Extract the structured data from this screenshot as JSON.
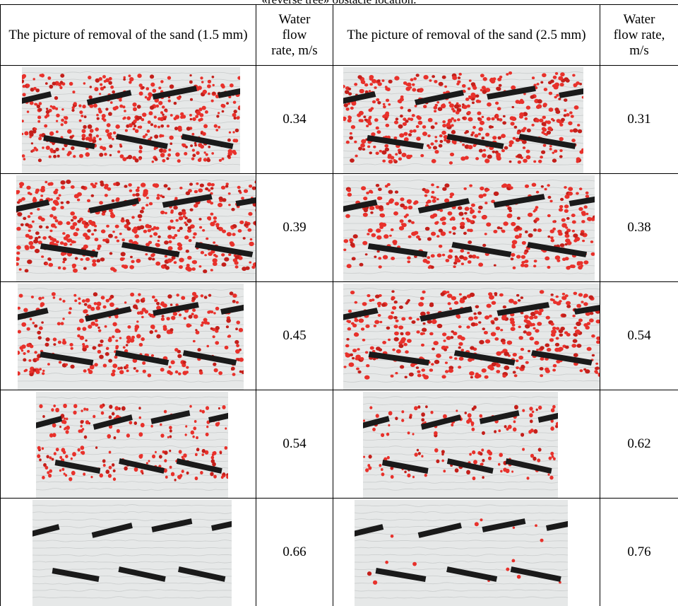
{
  "caption": "«reverse tree» obstacle location.",
  "headers": {
    "pic_small": "The picture of removal of the sand (1.5 mm)",
    "rate_small_lines": [
      "Water",
      "flow",
      "rate, m/s"
    ],
    "pic_large": "The picture of removal of the sand (2.5 mm)",
    "rate_large_lines": [
      "Water",
      "flow rate,",
      "m/s"
    ]
  },
  "rows": [
    {
      "rate_small": "0.34",
      "rate_large": "0.31",
      "sand_small": 0.85,
      "sand_large": 0.95
    },
    {
      "rate_small": "0.39",
      "rate_large": "0.38",
      "sand_small": 0.95,
      "sand_large": 0.7
    },
    {
      "rate_small": "0.45",
      "rate_large": "0.54",
      "sand_small": 0.65,
      "sand_large": 0.8
    },
    {
      "rate_small": "0.54",
      "rate_large": "0.62",
      "sand_small": 0.4,
      "sand_large": 0.3
    },
    {
      "rate_small": "0.66",
      "rate_large": "0.76",
      "sand_small": 0.0,
      "sand_large": 0.03
    }
  ],
  "colors": {
    "sand": "#e8312b",
    "sand_dark": "#c41f1a",
    "obstacle": "#1a1a1a",
    "water": "#e6e8e8"
  }
}
